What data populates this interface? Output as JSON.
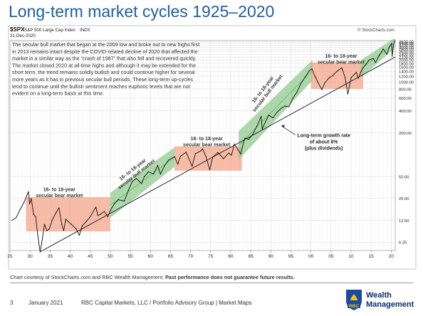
{
  "slide": {
    "title": "Long-term market cycles 1925–2020"
  },
  "chart_header": {
    "symbol": "$SPX",
    "name": "S&P 500 Large Cap Index",
    "exchange": "INDX",
    "date": "31-Dec-2020",
    "source": "© StockCharts.com"
  },
  "commentary": [
    "The secular bull market that began at the 2009 low and broke out to new highs first",
    "in 2013 remains intact despite the COVID-related decline of 2020 that affected the",
    "market in a similar way as the “crash of 1987” that also fell and recovered quickly.",
    "The market closed 2020 at all-time highs and although it may be extended for the",
    "short term, the trend remains solidly bullish and could continue higher for several",
    "more years as it has in previous secular bull periods. These long-term up-cycles",
    "tend to continue until the bullish sentiment reaches euphoric levels that are not",
    "evident on a long-term basis at this time."
  ],
  "chart_data": {
    "type": "line",
    "title": "",
    "xlabel": "",
    "ylabel": "",
    "scale": "log",
    "x_unit": "year",
    "xlim": [
      1925,
      2021
    ],
    "ylim": [
      4.8,
      3700
    ],
    "x_ticks": [
      {
        "year": 1925,
        "label": "25"
      },
      {
        "year": 1930,
        "label": "30"
      },
      {
        "year": 1935,
        "label": "35"
      },
      {
        "year": 1940,
        "label": "40"
      },
      {
        "year": 1945,
        "label": "45"
      },
      {
        "year": 1950,
        "label": "50"
      },
      {
        "year": 1955,
        "label": "55"
      },
      {
        "year": 1960,
        "label": "60"
      },
      {
        "year": 1965,
        "label": "65"
      },
      {
        "year": 1970,
        "label": "70"
      },
      {
        "year": 1975,
        "label": "75"
      },
      {
        "year": 1980,
        "label": "80"
      },
      {
        "year": 1985,
        "label": "85"
      },
      {
        "year": 1990,
        "label": "90"
      },
      {
        "year": 1995,
        "label": "95"
      },
      {
        "year": 2000,
        "label": "00"
      },
      {
        "year": 2005,
        "label": "05"
      },
      {
        "year": 2010,
        "label": "10"
      },
      {
        "year": 2015,
        "label": "15"
      },
      {
        "year": 2020,
        "label": "20"
      }
    ],
    "y_ticks": [
      {
        "value": 6.25,
        "label": "6.25"
      },
      {
        "value": 12.5,
        "label": "12.50"
      },
      {
        "value": 25,
        "label": "25.00"
      },
      {
        "value": 50,
        "label": "50.00"
      },
      {
        "value": 200,
        "label": "200.00"
      },
      {
        "value": 400,
        "label": "400.00"
      },
      {
        "value": 600,
        "label": "600.00"
      },
      {
        "value": 800,
        "label": "800.00"
      },
      {
        "value": 1000,
        "label": "1000.00"
      },
      {
        "value": 1200,
        "label": "1200.00"
      },
      {
        "value": 1400,
        "label": "1400.00"
      },
      {
        "value": 1600,
        "label": "1600.00"
      },
      {
        "value": 1800,
        "label": "1800.00"
      },
      {
        "value": 2000,
        "label": "2000.00"
      },
      {
        "value": 2200,
        "label": "2200.00"
      },
      {
        "value": 2400,
        "label": "2400.00"
      },
      {
        "value": 2600,
        "label": "2600.00"
      },
      {
        "value": 2800,
        "label": "2800.00"
      },
      {
        "value": 3000,
        "label": "3000.00"
      },
      {
        "value": 3200,
        "label": "3200.00"
      },
      {
        "value": 3400,
        "label": "3400.00"
      },
      {
        "value": 3600,
        "label": "3600.00"
      }
    ],
    "series": [
      {
        "color": "#111111",
        "points": [
          [
            1925.5,
            12.5
          ],
          [
            1926.5,
            13.5
          ],
          [
            1927.5,
            17.5
          ],
          [
            1928.5,
            22
          ],
          [
            1929.6,
            31
          ],
          [
            1929.9,
            21
          ],
          [
            1930.3,
            25
          ],
          [
            1930.9,
            15
          ],
          [
            1931.4,
            14
          ],
          [
            1931.9,
            8
          ],
          [
            1932.5,
            4.6
          ],
          [
            1933.1,
            7
          ],
          [
            1933.6,
            11
          ],
          [
            1934.2,
            9
          ],
          [
            1934.8,
            9.5
          ],
          [
            1935.5,
            12.5
          ],
          [
            1936.5,
            16
          ],
          [
            1937.2,
            18.5
          ],
          [
            1937.9,
            11
          ],
          [
            1938.4,
            9
          ],
          [
            1938.9,
            13
          ],
          [
            1939.5,
            12
          ],
          [
            1940.3,
            11
          ],
          [
            1941.5,
            9.5
          ],
          [
            1942.3,
            7.8
          ],
          [
            1943.0,
            10.5
          ],
          [
            1944.0,
            12
          ],
          [
            1945.0,
            14
          ],
          [
            1946.4,
            19
          ],
          [
            1946.9,
            14.5
          ],
          [
            1947.5,
            15
          ],
          [
            1948.5,
            16.5
          ],
          [
            1949.4,
            14
          ],
          [
            1950.0,
            17
          ],
          [
            1951.0,
            21
          ],
          [
            1952.0,
            24
          ],
          [
            1953.5,
            23
          ],
          [
            1954.5,
            32
          ],
          [
            1955.5,
            43
          ],
          [
            1956.5,
            47
          ],
          [
            1957.8,
            40
          ],
          [
            1958.5,
            50
          ],
          [
            1959.5,
            58
          ],
          [
            1960.8,
            54
          ],
          [
            1961.8,
            71
          ],
          [
            1962.5,
            54
          ],
          [
            1963.5,
            70
          ],
          [
            1964.5,
            84
          ],
          [
            1965.5,
            90
          ],
          [
            1966.0,
            94
          ],
          [
            1966.8,
            74
          ],
          [
            1967.5,
            95
          ],
          [
            1968.9,
            108
          ],
          [
            1970.4,
            69
          ],
          [
            1971.2,
            103
          ],
          [
            1972.5,
            112
          ],
          [
            1973.0,
            120
          ],
          [
            1973.8,
            95
          ],
          [
            1974.8,
            62
          ],
          [
            1975.5,
            92
          ],
          [
            1976.8,
            107
          ],
          [
            1977.5,
            97
          ],
          [
            1978.2,
            88
          ],
          [
            1979.5,
            105
          ],
          [
            1980.2,
            98
          ],
          [
            1980.9,
            140
          ],
          [
            1982.5,
            102
          ],
          [
            1983.5,
            168
          ],
          [
            1984.5,
            162
          ],
          [
            1985.5,
            190
          ],
          [
            1986.5,
            245
          ],
          [
            1987.6,
            335
          ],
          [
            1987.85,
            225
          ],
          [
            1988.5,
            270
          ],
          [
            1989.5,
            350
          ],
          [
            1990.5,
            320
          ],
          [
            1991.5,
            380
          ],
          [
            1992.5,
            430
          ],
          [
            1993.5,
            465
          ],
          [
            1994.5,
            455
          ],
          [
            1995.5,
            600
          ],
          [
            1996.5,
            720
          ],
          [
            1997.5,
            950
          ],
          [
            1998.5,
            1150
          ],
          [
            1999.5,
            1400
          ],
          [
            2000.2,
            1520
          ],
          [
            2001.0,
            1200
          ],
          [
            2001.7,
            1000
          ],
          [
            2002.7,
            780
          ],
          [
            2003.5,
            980
          ],
          [
            2004.5,
            1130
          ],
          [
            2005.5,
            1230
          ],
          [
            2006.5,
            1400
          ],
          [
            2007.7,
            1560
          ],
          [
            2008.5,
            1150
          ],
          [
            2009.2,
            680
          ],
          [
            2010.0,
            1140
          ],
          [
            2011.3,
            1350
          ],
          [
            2011.8,
            1120
          ],
          [
            2012.5,
            1400
          ],
          [
            2013.5,
            1700
          ],
          [
            2014.5,
            2000
          ],
          [
            2015.5,
            2100
          ],
          [
            2016.1,
            1850
          ],
          [
            2017.0,
            2300
          ],
          [
            2018.0,
            2850
          ],
          [
            2018.95,
            2400
          ],
          [
            2019.5,
            3000
          ],
          [
            2020.1,
            3380
          ],
          [
            2020.25,
            2250
          ],
          [
            2020.6,
            3300
          ],
          [
            2020.99,
            3756
          ]
        ]
      }
    ],
    "trendline": {
      "label": [
        "Long-term growth rate",
        "of about 8%",
        "(plus dividends)"
      ],
      "from": [
        1932.5,
        4.6
      ],
      "to": [
        2021,
        2200
      ]
    },
    "zones": [
      {
        "kind": "bear",
        "label": [
          "16- to 18-year",
          "secular bear market"
        ],
        "x0": 1929,
        "x1": 1950,
        "y0": 8.8,
        "y1": 26,
        "color": "#f2a286"
      },
      {
        "kind": "bull",
        "label": [
          "16- to 18-year",
          "secular bull market"
        ],
        "x0": 1950,
        "x1": 1966,
        "y0_start": 13.5,
        "y1_start": 30,
        "y0_end": 68,
        "y1_end": 125,
        "color": "#8cc98a"
      },
      {
        "kind": "bear",
        "label": [
          "16- to 18-year",
          "secular bear market"
        ],
        "x0": 1966,
        "x1": 1982.8,
        "y0": 60,
        "y1": 130,
        "color": "#f2a286"
      },
      {
        "kind": "bull",
        "label": [
          "16- to 18-year",
          "secular bull market"
        ],
        "x0": 1982,
        "x1": 2000.4,
        "y0_start": 85,
        "y1_start": 210,
        "y0_end": 1050,
        "y1_end": 2000,
        "color": "#8cc98a"
      },
      {
        "kind": "bear",
        "label": [
          "16- to 18-year",
          "secular bear market"
        ],
        "x0": 2000,
        "x1": 2013,
        "y0": 800,
        "y1": 1850,
        "color": "#f2a286"
      },
      {
        "kind": "bull",
        "label": [],
        "x0": 2012.5,
        "x1": 2020.8,
        "y0_start": 1150,
        "y1_start": 2000,
        "y0_end": 2900,
        "y1_end": 4000,
        "color": "#8cc98a"
      }
    ],
    "grid": true
  },
  "credit": {
    "text": "Chart courtesy of StockCharts.com  and RBC Wealth Management; ",
    "bold": "Past performance does not guarantee future results."
  },
  "footer": {
    "page": "3",
    "date": "January 2021",
    "source": "RBC Capital Markets, LLC / Portfolio Advisory Group  |  Market Maps",
    "logo_line1": "Wealth",
    "logo_line2": "Management",
    "logo_mark": "RBC"
  },
  "colors": {
    "title": "#1f5f9e",
    "bull_zone": "#8cc98a",
    "bear_zone": "#f2a286",
    "rbc_blue": "#1b4aa6",
    "rbc_yellow": "#f5c400"
  }
}
